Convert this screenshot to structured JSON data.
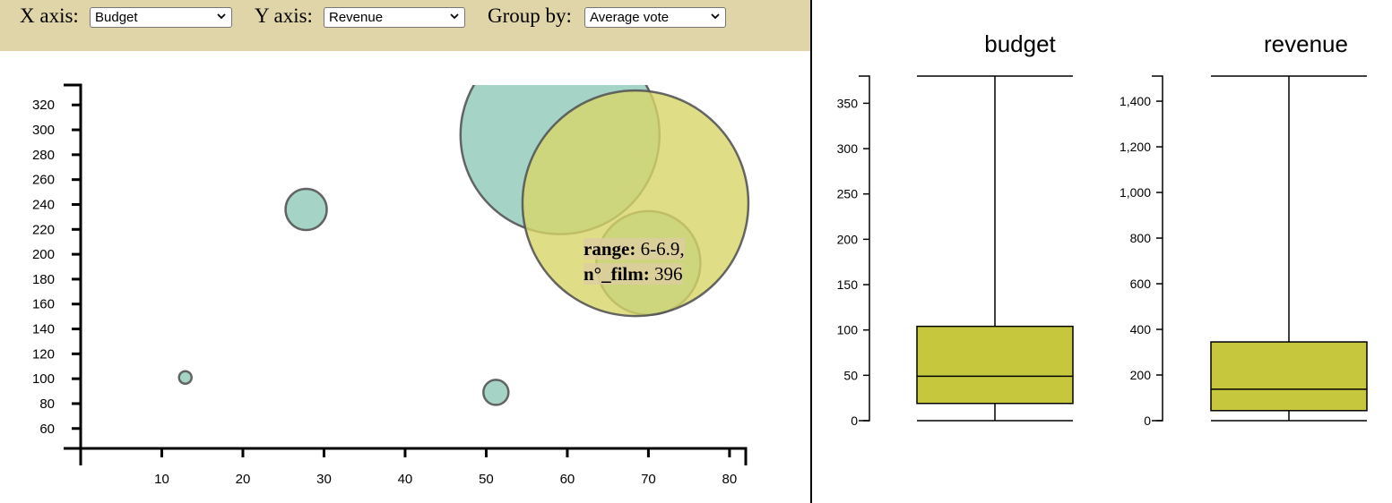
{
  "controls": {
    "x_label": "X axis:",
    "x_value": "Budget",
    "y_label": "Y axis:",
    "y_value": "Revenue",
    "group_label": "Group by:",
    "group_value": "Average vote",
    "bar_color": "#e0d5a8"
  },
  "tooltip": {
    "range_key": "range:",
    "range_value": "6-6.9,",
    "count_key": "n°_film:",
    "count_value": "396"
  },
  "chart_data": [
    {
      "type": "scatter",
      "xlim": [
        0,
        82
      ],
      "ylim": [
        44,
        336
      ],
      "x_ticks": [
        10,
        20,
        30,
        40,
        50,
        60,
        70,
        80
      ],
      "y_ticks": [
        60,
        80,
        100,
        120,
        140,
        160,
        180,
        200,
        220,
        240,
        260,
        280,
        300,
        320
      ],
      "grid": false,
      "points": [
        {
          "x": 12.9,
          "y": 101,
          "size": 7,
          "color": "#8ec9b9"
        },
        {
          "x": 27.8,
          "y": 236,
          "size": 23,
          "color": "#8ec9b9"
        },
        {
          "x": 51.2,
          "y": 89,
          "size": 14,
          "color": "#8ec9b9"
        },
        {
          "x": 70,
          "y": 193,
          "size": 58,
          "color": "#8ec9b9"
        },
        {
          "x": 59.1,
          "y": 296,
          "size": 111,
          "color": "#8ec9b9"
        },
        {
          "x": 68.4,
          "y": 241,
          "size": 126,
          "color": "#d7d669"
        }
      ]
    },
    {
      "type": "box",
      "title": "budget",
      "ylim": [
        0,
        380
      ],
      "y_ticks": [
        0,
        50,
        100,
        150,
        200,
        250,
        300,
        350
      ],
      "y_tick_labels": [
        "0",
        "50",
        "100",
        "150",
        "200",
        "250",
        "300",
        "350"
      ],
      "min": 0,
      "q1": 19,
      "median": 49,
      "q3": 104,
      "max": 380,
      "color": "#c6c73c"
    },
    {
      "type": "box",
      "title": "revenue",
      "ylim": [
        0,
        1510
      ],
      "y_ticks": [
        0,
        200,
        400,
        600,
        800,
        1000,
        1200,
        1400
      ],
      "y_tick_labels": [
        "0",
        "200",
        "400",
        "600",
        "800",
        "1,000",
        "1,200",
        "1,400"
      ],
      "min": 0,
      "q1": 44,
      "median": 138,
      "q3": 345,
      "max": 1510,
      "color": "#c6c73c"
    }
  ]
}
